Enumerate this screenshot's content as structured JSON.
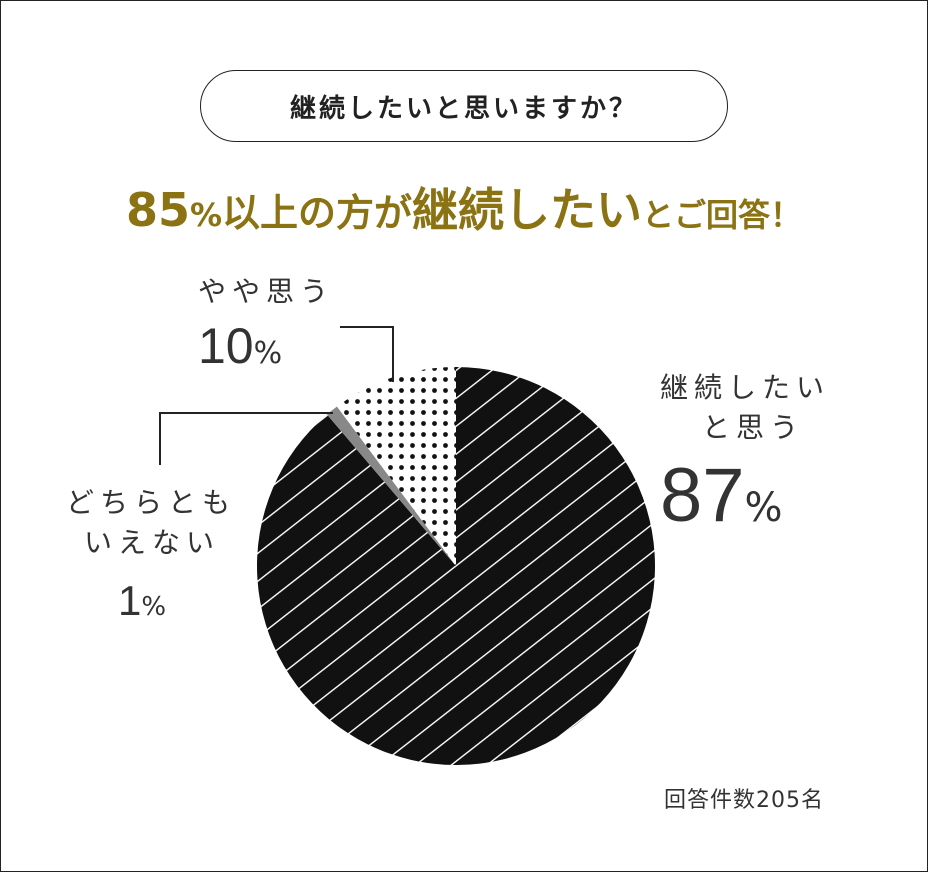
{
  "question": "継続したいと思いますか？",
  "headline": {
    "percent_num": "85",
    "percent_sign": "%",
    "part1": "以上の方が",
    "emphasis": "継続したい",
    "part2": "とご回答！"
  },
  "labels": {
    "continue": {
      "line1": "継続したい",
      "line2": "と思う",
      "num": "87",
      "unit": "%"
    },
    "somewhat": {
      "line1": "やや思う",
      "num": "10",
      "unit": "%"
    },
    "neither": {
      "line1": "どちらとも",
      "line2": "いえない",
      "num": "1",
      "unit": "%"
    }
  },
  "respondents": "回答件数205名",
  "colors": {
    "accent": "#8b7212",
    "slice_main": "#111111",
    "slice_neither": "#888888",
    "dots": "#111111"
  },
  "chart_data": {
    "type": "pie",
    "start": "12 o'clock, clockwise",
    "slices": [
      {
        "label": "継続したいと思う",
        "value": 87,
        "fill": "diagonal-stripes"
      },
      {
        "label": "どちらともいえない",
        "value": 1,
        "fill": "solid-gray"
      },
      {
        "label": "やや思う",
        "value": 10,
        "fill": "dots"
      }
    ]
  }
}
